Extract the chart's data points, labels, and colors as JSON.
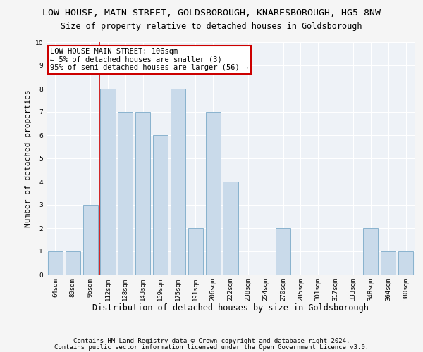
{
  "title": "LOW HOUSE, MAIN STREET, GOLDSBOROUGH, KNARESBOROUGH, HG5 8NW",
  "subtitle": "Size of property relative to detached houses in Goldsborough",
  "xlabel": "Distribution of detached houses by size in Goldsborough",
  "ylabel": "Number of detached properties",
  "categories": [
    "64sqm",
    "80sqm",
    "96sqm",
    "112sqm",
    "128sqm",
    "143sqm",
    "159sqm",
    "175sqm",
    "191sqm",
    "206sqm",
    "222sqm",
    "238sqm",
    "254sqm",
    "270sqm",
    "285sqm",
    "301sqm",
    "317sqm",
    "333sqm",
    "348sqm",
    "364sqm",
    "380sqm"
  ],
  "values": [
    1,
    1,
    3,
    8,
    7,
    7,
    6,
    8,
    2,
    7,
    4,
    0,
    0,
    2,
    0,
    0,
    0,
    0,
    2,
    1,
    1
  ],
  "bar_color": "#c9daea",
  "bar_edgecolor": "#7baac8",
  "vline_x_index": 3,
  "vline_color": "#cc0000",
  "ylim": [
    0,
    10
  ],
  "yticks": [
    0,
    1,
    2,
    3,
    4,
    5,
    6,
    7,
    8,
    9,
    10
  ],
  "annotation_text": "LOW HOUSE MAIN STREET: 106sqm\n← 5% of detached houses are smaller (3)\n95% of semi-detached houses are larger (56) →",
  "annotation_box_facecolor": "#ffffff",
  "annotation_box_edgecolor": "#cc0000",
  "footer1": "Contains HM Land Registry data © Crown copyright and database right 2024.",
  "footer2": "Contains public sector information licensed under the Open Government Licence v3.0.",
  "fig_facecolor": "#f5f5f5",
  "plot_facecolor": "#eef2f7",
  "grid_color": "#ffffff",
  "title_fontsize": 9.5,
  "subtitle_fontsize": 8.5,
  "xlabel_fontsize": 8.5,
  "ylabel_fontsize": 8,
  "tick_fontsize": 6.5,
  "annotation_fontsize": 7.5,
  "footer_fontsize": 6.5
}
